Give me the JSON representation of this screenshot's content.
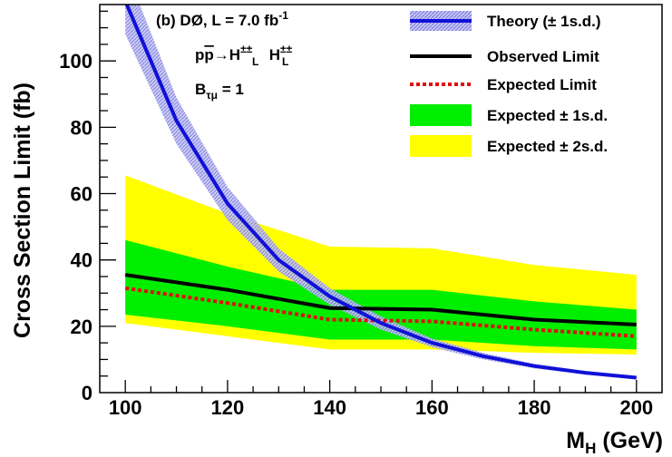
{
  "chart_data": {
    "type": "line",
    "xlabel": "M",
    "xlabel_sub": "H",
    "xlabel_unit": " (GeV)",
    "ylabel": "Cross Section Limit (fb)",
    "xlim": [
      95,
      205
    ],
    "ylim": [
      0,
      117
    ],
    "x_ticks": [
      100,
      120,
      140,
      160,
      180,
      200
    ],
    "y_ticks": [
      0,
      20,
      40,
      60,
      80,
      100
    ],
    "grid": false,
    "legend_position": "top-right",
    "annotations": {
      "line1_prefix": "(b) DØ, L = 7.0 fb",
      "line1_sup": "-1",
      "line2_p": "p",
      "line2_pbar": "p",
      "line2_arrow": "→H",
      "line2_sup1": "±±",
      "line2_sub1": "L",
      "line2_h2": " H",
      "line2_sup2": "±±",
      "line2_sub2": "L",
      "line3_b": "B",
      "line3_sub": "τμ",
      "line3_val": " = 1"
    },
    "colors": {
      "theory": "#1010d8",
      "theory_band": "#b8b8f0",
      "observed": "#000000",
      "expected": "#e01010",
      "band_1sd": "#00ee00",
      "band_2sd": "#ffff00"
    },
    "series": [
      {
        "name": "Theory (± 1s.d.)",
        "style": "solid-blue-with-hatched-band",
        "x": [
          100,
          110,
          120,
          130,
          140,
          150,
          160,
          170,
          180,
          190,
          200
        ],
        "values": [
          118,
          82,
          57,
          40,
          29,
          21,
          15,
          11,
          8,
          6,
          4.5
        ],
        "band_low": [
          108,
          75,
          52,
          36.5,
          26.5,
          19,
          13.7,
          10,
          7.3,
          5.5,
          4.1
        ],
        "band_high": [
          128,
          89,
          62,
          43.5,
          31.5,
          23,
          16.3,
          12,
          8.7,
          6.5,
          4.9
        ]
      },
      {
        "name": "Observed Limit",
        "style": "solid-black",
        "x": [
          100,
          120,
          140,
          160,
          180,
          200
        ],
        "values": [
          35.5,
          31,
          25.5,
          25,
          22,
          20.5
        ]
      },
      {
        "name": "Expected Limit",
        "style": "dotted-red",
        "x": [
          100,
          120,
          140,
          160,
          180,
          200
        ],
        "values": [
          31.5,
          27,
          22,
          21.5,
          19,
          17
        ]
      },
      {
        "name": "Expected ± 1s.d.",
        "style": "green-band",
        "x": [
          100,
          120,
          140,
          160,
          180,
          200
        ],
        "band_low": [
          23.5,
          20,
          16,
          16,
          14,
          13
        ],
        "band_high": [
          46,
          38,
          31,
          31,
          27.5,
          25
        ]
      },
      {
        "name": "Expected ± 2s.d.",
        "style": "yellow-band",
        "x": [
          100,
          120,
          140,
          160,
          180,
          200
        ],
        "band_low": [
          21,
          17,
          13,
          13,
          12,
          11.5
        ],
        "band_high": [
          65.5,
          54,
          44,
          43.5,
          38.5,
          35.5
        ]
      }
    ]
  }
}
